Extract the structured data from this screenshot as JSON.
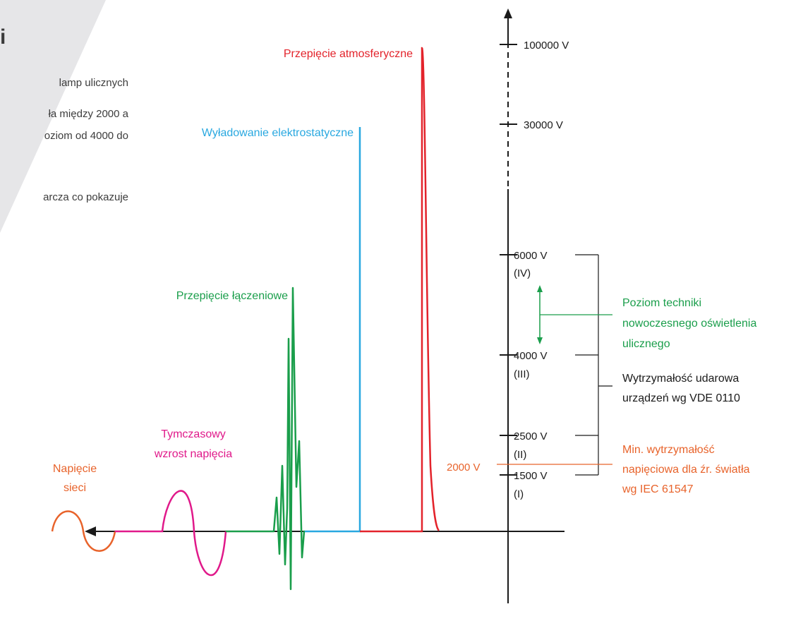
{
  "corner_text": {
    "title": "i",
    "lines": [
      "lamp   ulicznych",
      "ła między 2000 a",
      "oziom od 4000 do",
      "arcza co pokazuje"
    ]
  },
  "events": {
    "mains": "Napięcie\nsieci",
    "mains_lines": [
      "Napięcie",
      "sieci"
    ],
    "temporary": [
      "Tymczasowy",
      "wzrost napięcia"
    ],
    "switching": "Przepięcie łączeniowe",
    "esd": "Wyładowanie elektrostatyczne",
    "lightning": "Przepięcie atmosferyczne"
  },
  "axis": {
    "ticks": [
      {
        "label": "100000 V",
        "sub": ""
      },
      {
        "label": "30000 V",
        "sub": ""
      },
      {
        "label": "6000 V",
        "sub": "(IV)"
      },
      {
        "label": "4000 V",
        "sub": "(III)"
      },
      {
        "label": "2500 V",
        "sub": "(II)"
      },
      {
        "label": "1500 V",
        "sub": "(I)"
      }
    ],
    "reference": "2000 V"
  },
  "annotations": {
    "modern_lighting": [
      "Poziom techniki",
      "nowoczesnego oświetlenia",
      "ulicznego"
    ],
    "vde": [
      "Wytrzymałość udarowa",
      "urządzeń wg VDE 0110"
    ],
    "iec": [
      "Min. wytrzymałość",
      "napięciowa dla źr. światła",
      "wg IEC 61547"
    ]
  },
  "colors": {
    "mains": "#e8632b",
    "temporary": "#e0198a",
    "switching": "#1a9e4b",
    "esd": "#29a8e0",
    "lightning": "#e3232b",
    "axis": "#1a1a1a",
    "corner_panel": "#e6e6e8"
  }
}
